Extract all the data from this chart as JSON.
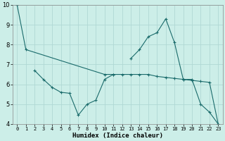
{
  "xlabel": "Humidex (Indice chaleur)",
  "bg_color": "#cceee8",
  "grid_color": "#b0d8d4",
  "line_color": "#1a6b6b",
  "xlim": [
    -0.5,
    23.5
  ],
  "ylim": [
    4,
    10
  ],
  "yticks": [
    4,
    5,
    6,
    7,
    8,
    9,
    10
  ],
  "xticks": [
    0,
    1,
    2,
    3,
    4,
    5,
    6,
    7,
    8,
    9,
    10,
    11,
    12,
    13,
    14,
    15,
    16,
    17,
    18,
    19,
    20,
    21,
    22,
    23
  ],
  "line1_x": [
    0,
    1,
    10,
    11,
    12,
    13,
    14,
    15,
    16,
    17,
    18,
    19,
    20,
    21,
    22,
    23
  ],
  "line1_y": [
    10,
    7.75,
    6.5,
    6.5,
    6.5,
    6.5,
    6.5,
    6.5,
    6.4,
    6.35,
    6.3,
    6.25,
    6.2,
    6.15,
    6.1,
    4.0
  ],
  "line2_x": [
    2,
    3,
    4,
    5,
    6,
    7,
    8,
    9,
    10,
    11
  ],
  "line2_y": [
    6.7,
    6.25,
    5.85,
    5.6,
    5.55,
    4.45,
    5.0,
    5.2,
    6.25,
    6.5
  ],
  "line3_x": [
    13,
    14,
    15,
    16,
    17,
    18,
    19,
    20,
    21,
    22,
    23
  ],
  "line3_y": [
    7.3,
    7.75,
    8.4,
    8.6,
    9.3,
    8.1,
    6.25,
    6.25,
    5.0,
    4.6,
    4.0
  ]
}
